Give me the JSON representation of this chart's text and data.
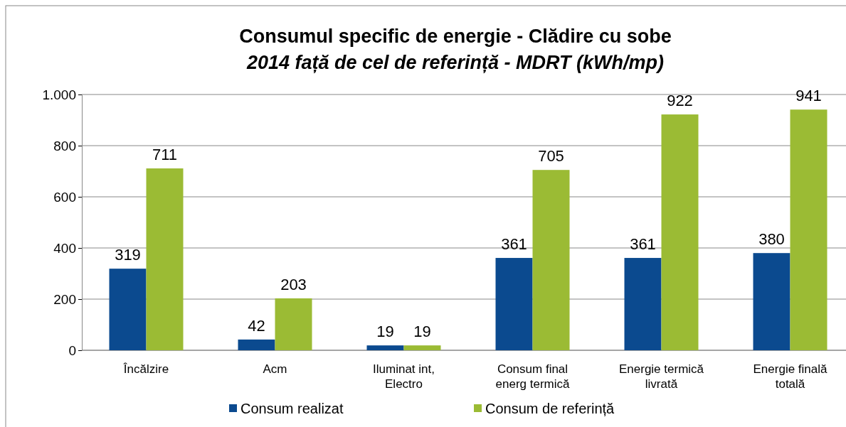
{
  "chart_data": {
    "type": "bar",
    "title": "Consumul specific de energie - Clădire cu sobe",
    "subtitle": "2014 față de cel de referință - MDRT (kWh/mp)",
    "categories": [
      "Încălzire",
      "Acm",
      "Iluminat int, Electro",
      "Consum final energ termică",
      "Energie termică livrată",
      "Energie finală totală"
    ],
    "series": [
      {
        "name": "Consum realizat",
        "color": "#0b4a8f",
        "values": [
          319,
          42,
          19,
          361,
          361,
          380
        ]
      },
      {
        "name": "Consum de referință",
        "color": "#9bbb34",
        "values": [
          711,
          203,
          19,
          705,
          922,
          941
        ]
      }
    ],
    "ylim": [
      0,
      1000
    ],
    "yticks": [
      0,
      200,
      400,
      600,
      800,
      {
        "value": 1000,
        "label": "1.000"
      }
    ],
    "grid": "y",
    "legend": "bottom",
    "data_labels": true
  }
}
